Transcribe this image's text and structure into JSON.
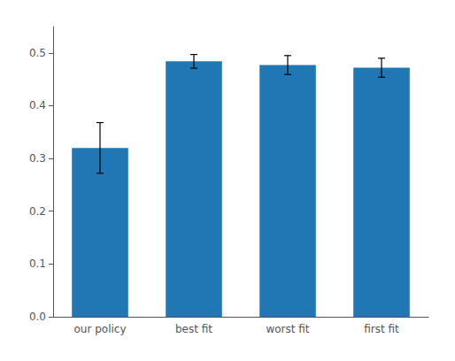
{
  "chart_data": {
    "type": "bar",
    "categories": [
      "our policy",
      "best fit",
      "worst fit",
      "first fit"
    ],
    "values": [
      0.32,
      0.484,
      0.477,
      0.472
    ],
    "errors": [
      0.048,
      0.013,
      0.018,
      0.018
    ],
    "color": "#2077b4",
    "ylim": [
      0.0,
      0.55
    ],
    "yticks": [
      {
        "value": 0,
        "label": "0.0"
      },
      0.1,
      0.2,
      0.3,
      0.4,
      0.5
    ],
    "grid": false
  }
}
